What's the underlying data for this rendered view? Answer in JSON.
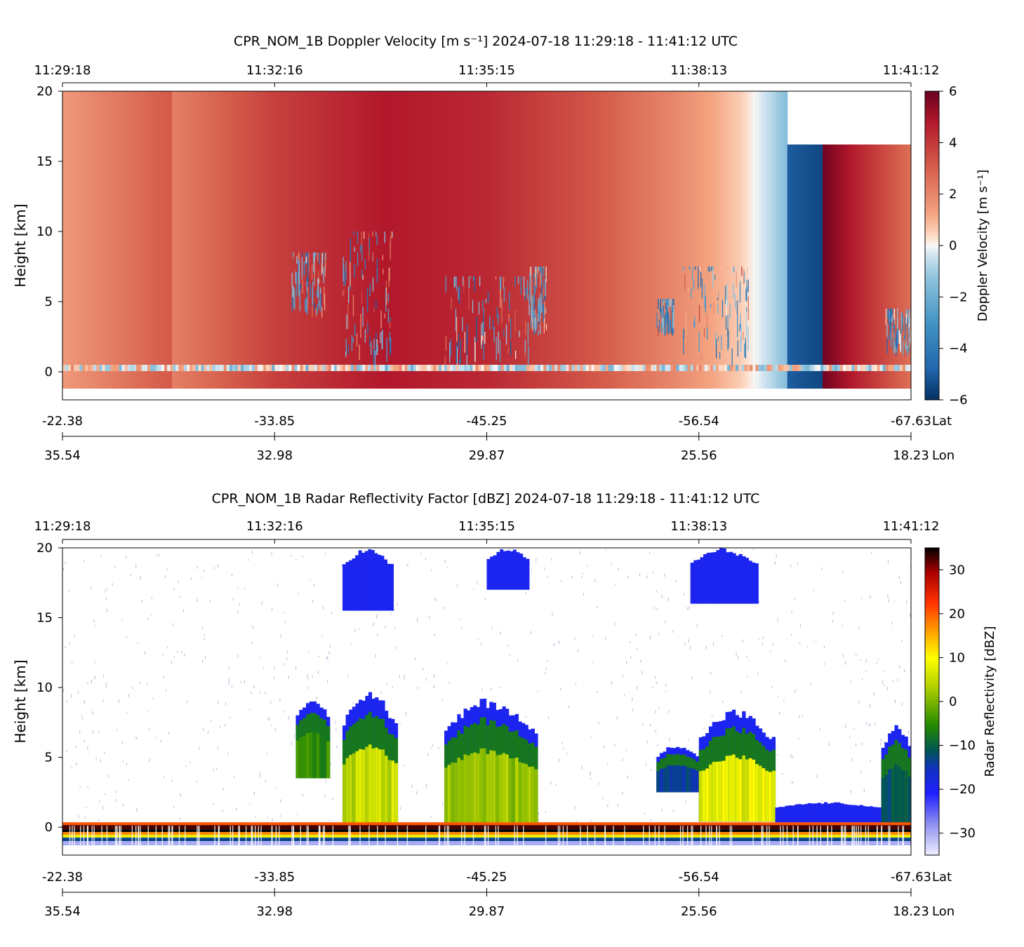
{
  "chart_data": [
    {
      "type": "heatmap",
      "title": "CPR_NOM_1B Doppler Velocity [m s⁻¹]    2024-07-18    11:29:18 - 11:41:12 UTC",
      "time_ticks": [
        "11:29:18",
        "11:32:16",
        "11:35:15",
        "11:38:13",
        "11:41:12"
      ],
      "lat_ticks": [
        "-22.38",
        "-33.85",
        "-45.25",
        "-56.54",
        "-67.63"
      ],
      "lat_label": "Lat",
      "lon_ticks": [
        "35.54",
        "32.98",
        "29.87",
        "25.56",
        "18.23"
      ],
      "lon_label": "Lon",
      "ylabel": "Height [km]",
      "ylim": [
        -2,
        20
      ],
      "yticks": [
        0,
        5,
        10,
        15,
        20
      ],
      "colorbar": {
        "label": "Doppler Velocity [m s⁻¹]",
        "range": [
          -6,
          6
        ],
        "ticks": [
          "6",
          "4",
          "2",
          "0",
          "−2",
          "−4",
          "−6"
        ],
        "colormap": "RdBu_r"
      },
      "background_profile": {
        "description_of_values": "column-mean velocity along track (fraction of track 0..1, m/s)",
        "points": [
          [
            0.0,
            1.5
          ],
          [
            0.13,
            3.2
          ],
          [
            0.131,
            2.2
          ],
          [
            0.25,
            3.8
          ],
          [
            0.38,
            4.8
          ],
          [
            0.5,
            4.4
          ],
          [
            0.62,
            3.3
          ],
          [
            0.72,
            2.0
          ],
          [
            0.8,
            0.6
          ],
          [
            0.853,
            -1.4
          ],
          [
            0.854,
            -5.0
          ],
          [
            0.896,
            -5.5
          ],
          [
            0.897,
            5.8
          ],
          [
            1.0,
            2.6
          ]
        ],
        "top_km": [
          [
            0.0,
            20
          ],
          [
            0.853,
            20
          ],
          [
            0.854,
            16.2
          ],
          [
            1.0,
            16.2
          ]
        ],
        "bottom_km": -1.2
      }
    },
    {
      "type": "heatmap",
      "title": "CPR_NOM_1B Radar Reflectivity Factor [dBZ]    2024-07-18    11:29:18 - 11:41:12 UTC",
      "time_ticks": [
        "11:29:18",
        "11:32:16",
        "11:35:15",
        "11:38:13",
        "11:41:12"
      ],
      "lat_ticks": [
        "-22.38",
        "-33.85",
        "-45.25",
        "-56.54",
        "-67.63"
      ],
      "lat_label": "Lat",
      "lon_ticks": [
        "35.54",
        "32.98",
        "29.87",
        "25.56",
        "18.23"
      ],
      "lon_label": "Lon",
      "ylabel": "Height [km]",
      "ylim": [
        -2,
        20
      ],
      "yticks": [
        0,
        5,
        10,
        15,
        20
      ],
      "colorbar": {
        "label": "Radar Reflectivity [dBZ]",
        "range": [
          -35,
          35
        ],
        "ticks": [
          "30",
          "20",
          "10",
          "0",
          "−10",
          "−20",
          "−30"
        ],
        "colormap": "white-blue-green-yellow-red-black"
      },
      "cloud_features": [
        {
          "x0": 0.275,
          "x1": 0.315,
          "base_km": 3.5,
          "top_km": 9.5,
          "dbz": -5
        },
        {
          "x0": 0.33,
          "x1": 0.395,
          "base_km": 0.3,
          "top_km": 10.0,
          "dbz": 5
        },
        {
          "x0": 0.45,
          "x1": 0.56,
          "base_km": 0.3,
          "top_km": 9.3,
          "dbz": 2
        },
        {
          "x0": 0.7,
          "x1": 0.75,
          "base_km": 2.5,
          "top_km": 6.0,
          "dbz": -15
        },
        {
          "x0": 0.75,
          "x1": 0.84,
          "base_km": 0.4,
          "top_km": 8.5,
          "dbz": 8
        },
        {
          "x0": 0.84,
          "x1": 0.97,
          "base_km": 0.3,
          "top_km": 1.8,
          "dbz": -20
        },
        {
          "x0": 0.965,
          "x1": 1.0,
          "base_km": 0.3,
          "top_km": 7.5,
          "dbz": -12
        },
        {
          "x0": 0.33,
          "x1": 0.39,
          "base_km": 15.5,
          "top_km": 20.0,
          "dbz": -20
        },
        {
          "x0": 0.5,
          "x1": 0.55,
          "base_km": 17.0,
          "top_km": 20.0,
          "dbz": -22
        },
        {
          "x0": 0.74,
          "x1": 0.82,
          "base_km": 16.0,
          "top_km": 20.0,
          "dbz": -22
        }
      ],
      "surface_echo_km": 0,
      "surface_echo_dbz": 33
    }
  ]
}
